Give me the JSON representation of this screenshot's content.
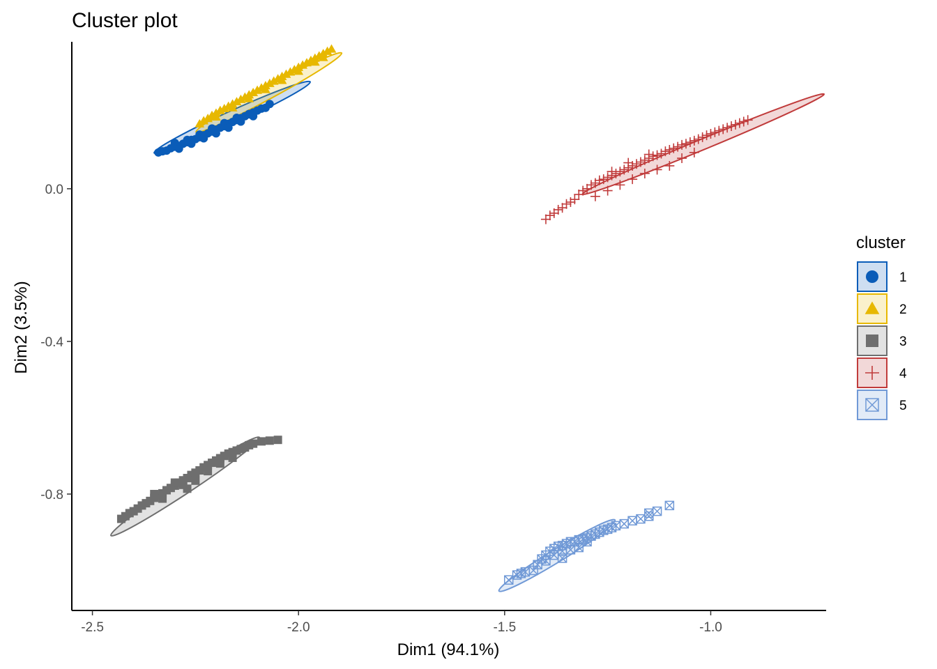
{
  "chart_data": {
    "type": "scatter",
    "title": "Cluster plot",
    "xlabel": "Dim1 (94.1%)",
    "ylabel": "Dim2 (3.5%)",
    "xlim": [
      -2.55,
      -0.72
    ],
    "ylim": [
      -1.105,
      0.385
    ],
    "x_ticks": [
      -2.5,
      -2.0,
      -1.5,
      -1.0
    ],
    "x_tick_labels": [
      "-2.5",
      "-2.0",
      "-1.5",
      "-1.0"
    ],
    "y_ticks": [
      0.0,
      -0.4,
      -0.8
    ],
    "y_tick_labels": [
      "0.0",
      "-0.4",
      "-0.8"
    ],
    "grid": false,
    "legend": {
      "title": "cluster",
      "position": "right"
    },
    "series": [
      {
        "name": "1",
        "shape": "circle",
        "color": "#0A5CB8",
        "ellipse": {
          "cx": -2.161,
          "cy": 0.187,
          "rx": 0.208,
          "ry": 0.017,
          "angle_deg": 24.5
        },
        "points": [
          [
            -2.34,
            0.095
          ],
          [
            -2.33,
            0.098
          ],
          [
            -2.32,
            0.1
          ],
          [
            -2.31,
            0.106
          ],
          [
            -2.3,
            0.11
          ],
          [
            -2.29,
            0.112
          ],
          [
            -2.28,
            0.118
          ],
          [
            -2.27,
            0.122
          ],
          [
            -2.26,
            0.128
          ],
          [
            -2.25,
            0.13
          ],
          [
            -2.24,
            0.135
          ],
          [
            -2.23,
            0.14
          ],
          [
            -2.22,
            0.145
          ],
          [
            -2.21,
            0.15
          ],
          [
            -2.2,
            0.155
          ],
          [
            -2.19,
            0.16
          ],
          [
            -2.18,
            0.164
          ],
          [
            -2.17,
            0.17
          ],
          [
            -2.16,
            0.175
          ],
          [
            -2.15,
            0.18
          ],
          [
            -2.14,
            0.185
          ],
          [
            -2.13,
            0.19
          ],
          [
            -2.12,
            0.195
          ],
          [
            -2.11,
            0.2
          ],
          [
            -2.1,
            0.205
          ],
          [
            -2.09,
            0.21
          ],
          [
            -2.08,
            0.212
          ],
          [
            -2.07,
            0.222
          ],
          [
            -2.3,
            0.12
          ],
          [
            -2.27,
            0.128
          ],
          [
            -2.24,
            0.142
          ],
          [
            -2.21,
            0.158
          ],
          [
            -2.18,
            0.172
          ],
          [
            -2.15,
            0.186
          ],
          [
            -2.12,
            0.196
          ],
          [
            -2.29,
            0.105
          ],
          [
            -2.26,
            0.118
          ],
          [
            -2.23,
            0.132
          ],
          [
            -2.2,
            0.145
          ],
          [
            -2.17,
            0.16
          ],
          [
            -2.14,
            0.176
          ],
          [
            -2.11,
            0.19
          ]
        ]
      },
      {
        "name": "2",
        "shape": "triangle",
        "color": "#E7B800",
        "ellipse": {
          "cx": -2.072,
          "cy": 0.252,
          "rx": 0.201,
          "ry": 0.016,
          "angle_deg": 28.5
        },
        "points": [
          [
            -2.24,
            0.17
          ],
          [
            -2.23,
            0.178
          ],
          [
            -2.22,
            0.184
          ],
          [
            -2.21,
            0.192
          ],
          [
            -2.2,
            0.198
          ],
          [
            -2.19,
            0.205
          ],
          [
            -2.18,
            0.21
          ],
          [
            -2.17,
            0.216
          ],
          [
            -2.16,
            0.222
          ],
          [
            -2.15,
            0.228
          ],
          [
            -2.14,
            0.234
          ],
          [
            -2.13,
            0.24
          ],
          [
            -2.12,
            0.246
          ],
          [
            -2.11,
            0.252
          ],
          [
            -2.1,
            0.258
          ],
          [
            -2.09,
            0.264
          ],
          [
            -2.08,
            0.27
          ],
          [
            -2.07,
            0.276
          ],
          [
            -2.06,
            0.282
          ],
          [
            -2.05,
            0.288
          ],
          [
            -2.04,
            0.294
          ],
          [
            -2.03,
            0.3
          ],
          [
            -2.02,
            0.306
          ],
          [
            -2.01,
            0.312
          ],
          [
            -2.0,
            0.318
          ],
          [
            -1.99,
            0.324
          ],
          [
            -1.98,
            0.33
          ],
          [
            -1.97,
            0.336
          ],
          [
            -1.96,
            0.342
          ],
          [
            -1.95,
            0.348
          ],
          [
            -1.94,
            0.354
          ],
          [
            -1.93,
            0.36
          ],
          [
            -1.92,
            0.366
          ],
          [
            -2.2,
            0.188
          ],
          [
            -2.16,
            0.212
          ],
          [
            -2.12,
            0.236
          ],
          [
            -2.08,
            0.26
          ],
          [
            -2.04,
            0.284
          ],
          [
            -2.0,
            0.308
          ],
          [
            -1.96,
            0.332
          ],
          [
            -1.94,
            0.344
          ]
        ]
      },
      {
        "name": "3",
        "shape": "square",
        "color": "#6E6E6E",
        "ellipse": {
          "cx": -2.275,
          "cy": -0.78,
          "rx": 0.216,
          "ry": 0.018,
          "angle_deg": 33.5
        },
        "points": [
          [
            -2.43,
            -0.865
          ],
          [
            -2.42,
            -0.858
          ],
          [
            -2.41,
            -0.85
          ],
          [
            -2.4,
            -0.845
          ],
          [
            -2.39,
            -0.838
          ],
          [
            -2.38,
            -0.83
          ],
          [
            -2.37,
            -0.824
          ],
          [
            -2.36,
            -0.818
          ],
          [
            -2.35,
            -0.81
          ],
          [
            -2.34,
            -0.804
          ],
          [
            -2.33,
            -0.798
          ],
          [
            -2.32,
            -0.79
          ],
          [
            -2.31,
            -0.784
          ],
          [
            -2.3,
            -0.778
          ],
          [
            -2.29,
            -0.77
          ],
          [
            -2.28,
            -0.764
          ],
          [
            -2.27,
            -0.758
          ],
          [
            -2.26,
            -0.75
          ],
          [
            -2.25,
            -0.744
          ],
          [
            -2.24,
            -0.738
          ],
          [
            -2.23,
            -0.73
          ],
          [
            -2.22,
            -0.724
          ],
          [
            -2.21,
            -0.718
          ],
          [
            -2.2,
            -0.712
          ],
          [
            -2.19,
            -0.706
          ],
          [
            -2.18,
            -0.7
          ],
          [
            -2.17,
            -0.694
          ],
          [
            -2.16,
            -0.69
          ],
          [
            -2.15,
            -0.686
          ],
          [
            -2.14,
            -0.682
          ],
          [
            -2.13,
            -0.678
          ],
          [
            -2.12,
            -0.672
          ],
          [
            -2.11,
            -0.668
          ],
          [
            -2.09,
            -0.662
          ],
          [
            -2.07,
            -0.66
          ],
          [
            -2.05,
            -0.658
          ],
          [
            -2.35,
            -0.8
          ],
          [
            -2.3,
            -0.77
          ],
          [
            -2.27,
            -0.786
          ],
          [
            -2.25,
            -0.765
          ],
          [
            -2.22,
            -0.74
          ],
          [
            -2.19,
            -0.72
          ],
          [
            -2.16,
            -0.705
          ],
          [
            -2.33,
            -0.812
          ],
          [
            -2.28,
            -0.776
          ]
        ]
      },
      {
        "name": "4",
        "shape": "plus",
        "color": "#C03B3B",
        "ellipse": {
          "cx": -1.018,
          "cy": 0.117,
          "rx": 0.317,
          "ry": 0.014,
          "angle_deg": 22.5
        },
        "points": [
          [
            -1.4,
            -0.08
          ],
          [
            -1.39,
            -0.07
          ],
          [
            -1.38,
            -0.064
          ],
          [
            -1.37,
            -0.055
          ],
          [
            -1.36,
            -0.05
          ],
          [
            -1.35,
            -0.04
          ],
          [
            -1.34,
            -0.035
          ],
          [
            -1.33,
            -0.028
          ],
          [
            -1.32,
            -0.015
          ],
          [
            -1.31,
            -0.005
          ],
          [
            -1.3,
            0.0
          ],
          [
            -1.29,
            0.01
          ],
          [
            -1.28,
            0.015
          ],
          [
            -1.27,
            0.022
          ],
          [
            -1.26,
            0.025
          ],
          [
            -1.25,
            0.03
          ],
          [
            -1.24,
            0.035
          ],
          [
            -1.23,
            0.04
          ],
          [
            -1.22,
            0.045
          ],
          [
            -1.21,
            0.05
          ],
          [
            -1.2,
            0.055
          ],
          [
            -1.19,
            0.06
          ],
          [
            -1.18,
            0.065
          ],
          [
            -1.17,
            0.07
          ],
          [
            -1.16,
            0.075
          ],
          [
            -1.15,
            0.08
          ],
          [
            -1.14,
            0.085
          ],
          [
            -1.13,
            0.088
          ],
          [
            -1.12,
            0.092
          ],
          [
            -1.11,
            0.098
          ],
          [
            -1.1,
            0.102
          ],
          [
            -1.09,
            0.106
          ],
          [
            -1.08,
            0.11
          ],
          [
            -1.07,
            0.115
          ],
          [
            -1.06,
            0.118
          ],
          [
            -1.05,
            0.122
          ],
          [
            -1.04,
            0.126
          ],
          [
            -1.03,
            0.13
          ],
          [
            -1.02,
            0.135
          ],
          [
            -1.01,
            0.14
          ],
          [
            -1.0,
            0.144
          ],
          [
            -0.99,
            0.148
          ],
          [
            -0.98,
            0.152
          ],
          [
            -0.97,
            0.156
          ],
          [
            -0.96,
            0.16
          ],
          [
            -0.95,
            0.164
          ],
          [
            -0.94,
            0.168
          ],
          [
            -0.93,
            0.172
          ],
          [
            -0.92,
            0.176
          ],
          [
            -0.91,
            0.18
          ],
          [
            -1.28,
            -0.02
          ],
          [
            -1.25,
            -0.005
          ],
          [
            -1.22,
            0.01
          ],
          [
            -1.19,
            0.025
          ],
          [
            -1.16,
            0.04
          ],
          [
            -1.13,
            0.05
          ],
          [
            -1.1,
            0.06
          ],
          [
            -1.07,
            0.08
          ],
          [
            -1.04,
            0.095
          ],
          [
            -1.24,
            0.045
          ],
          [
            -1.2,
            0.068
          ],
          [
            -1.15,
            0.09
          ]
        ]
      },
      {
        "name": "5",
        "shape": "square-x",
        "color": "#7099D6",
        "ellipse": {
          "cx": -1.373,
          "cy": -0.961,
          "rx": 0.165,
          "ry": 0.017,
          "angle_deg": 31.5
        },
        "points": [
          [
            -1.49,
            -1.025
          ],
          [
            -1.47,
            -1.012
          ],
          [
            -1.46,
            -1.008
          ],
          [
            -1.45,
            -1.004
          ],
          [
            -1.43,
            -1.0
          ],
          [
            -1.42,
            -0.985
          ],
          [
            -1.41,
            -0.97
          ],
          [
            -1.4,
            -0.96
          ],
          [
            -1.39,
            -0.95
          ],
          [
            -1.38,
            -0.943
          ],
          [
            -1.37,
            -0.937
          ],
          [
            -1.36,
            -0.935
          ],
          [
            -1.35,
            -0.93
          ],
          [
            -1.34,
            -0.925
          ],
          [
            -1.33,
            -0.925
          ],
          [
            -1.32,
            -0.92
          ],
          [
            -1.31,
            -0.918
          ],
          [
            -1.3,
            -0.915
          ],
          [
            -1.29,
            -0.91
          ],
          [
            -1.28,
            -0.905
          ],
          [
            -1.27,
            -0.9
          ],
          [
            -1.26,
            -0.895
          ],
          [
            -1.25,
            -0.892
          ],
          [
            -1.24,
            -0.888
          ],
          [
            -1.23,
            -0.883
          ],
          [
            -1.21,
            -0.878
          ],
          [
            -1.19,
            -0.87
          ],
          [
            -1.17,
            -0.865
          ],
          [
            -1.15,
            -0.858
          ],
          [
            -1.13,
            -0.845
          ],
          [
            -1.1,
            -0.83
          ],
          [
            -1.38,
            -0.96
          ],
          [
            -1.36,
            -0.95
          ],
          [
            -1.34,
            -0.946
          ],
          [
            -1.32,
            -0.94
          ],
          [
            -1.3,
            -0.925
          ],
          [
            -1.4,
            -0.975
          ],
          [
            -1.36,
            -0.968
          ],
          [
            -1.15,
            -0.85
          ]
        ]
      }
    ]
  }
}
